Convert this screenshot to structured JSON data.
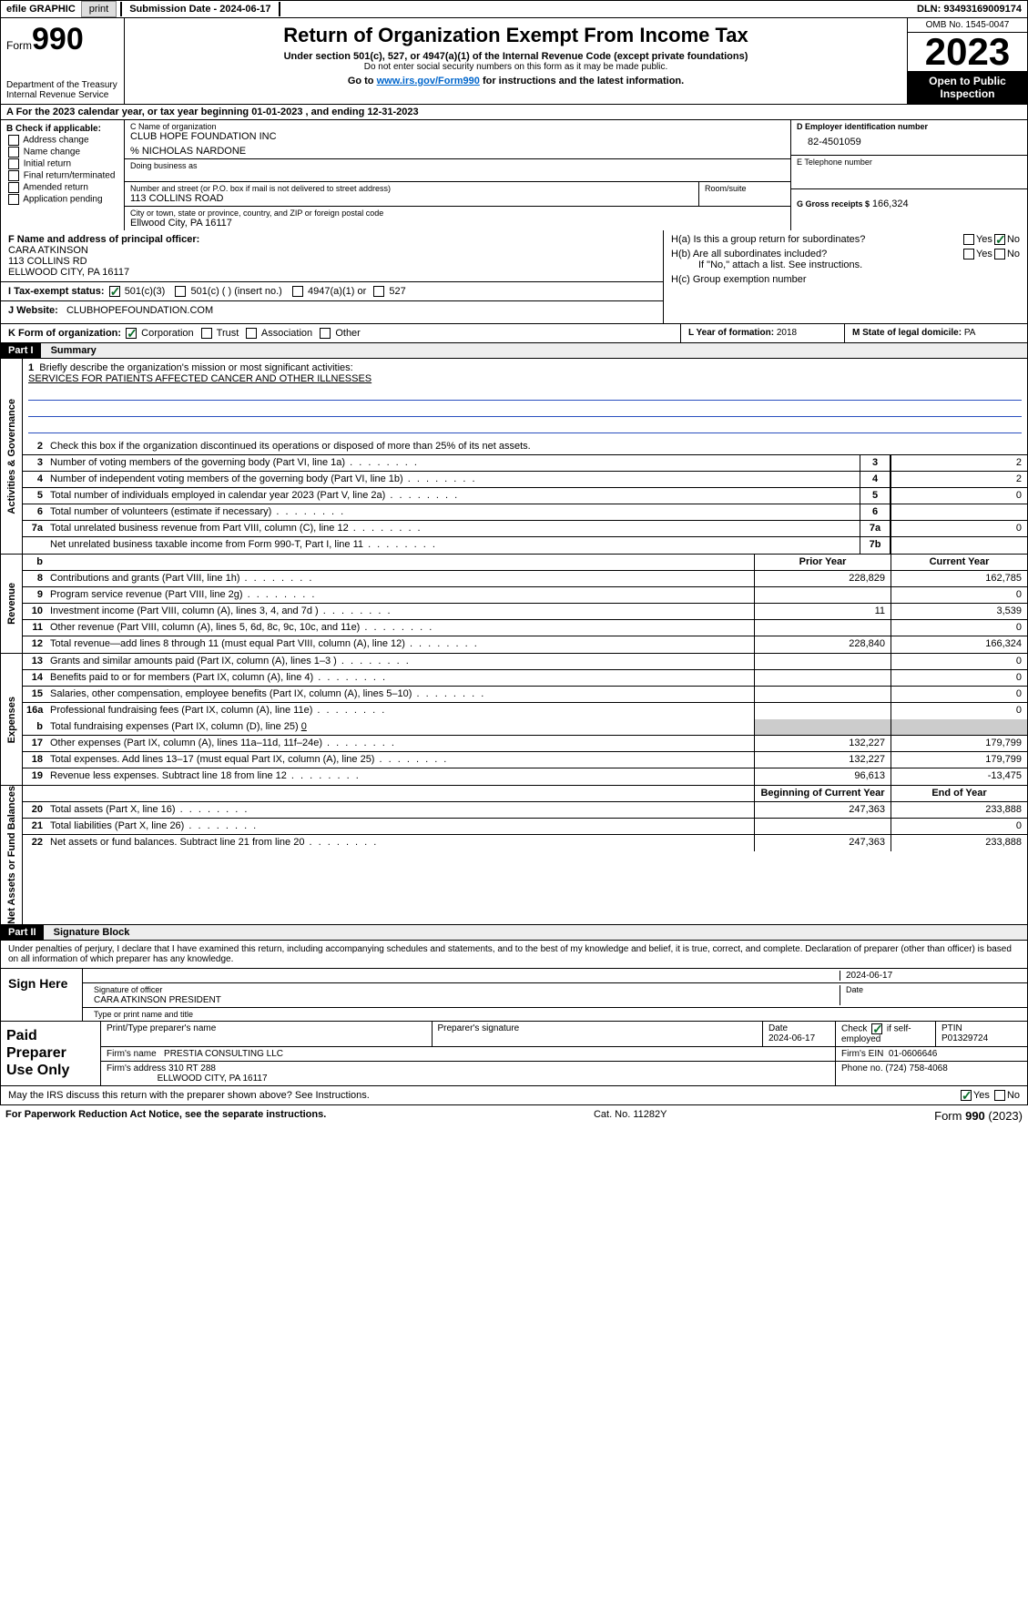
{
  "topbar": {
    "efile": "efile GRAPHIC",
    "print": "print",
    "submission": "Submission Date - 2024-06-17",
    "dln": "DLN: 93493169009174"
  },
  "header": {
    "form_word": "Form",
    "form_num": "990",
    "dept": "Department of the Treasury Internal Revenue Service",
    "title": "Return of Organization Exempt From Income Tax",
    "sub1": "Under section 501(c), 527, or 4947(a)(1) of the Internal Revenue Code (except private foundations)",
    "sub2": "Do not enter social security numbers on this form as it may be made public.",
    "goto_pre": "Go to ",
    "goto_link": "www.irs.gov/Form990",
    "goto_post": " for instructions and the latest information.",
    "omb": "OMB No. 1545-0047",
    "year": "2023",
    "open": "Open to Public Inspection"
  },
  "period": "A For the 2023 calendar year, or tax year beginning 01-01-2023   , and ending 12-31-2023",
  "colB": {
    "title": "B Check if applicable:",
    "opts": [
      "Address change",
      "Name change",
      "Initial return",
      "Final return/terminated",
      "Amended return",
      "Application pending"
    ]
  },
  "C": {
    "lbl_name": "C Name of organization",
    "org": "CLUB HOPE FOUNDATION INC",
    "care": "% NICHOLAS NARDONE",
    "dba_lbl": "Doing business as",
    "addr_lbl": "Number and street (or P.O. box if mail is not delivered to street address)",
    "room_lbl": "Room/suite",
    "addr": "113 COLLINS ROAD",
    "city_lbl": "City or town, state or province, country, and ZIP or foreign postal code",
    "city": "Ellwood City, PA  16117"
  },
  "D": {
    "lbl": "D Employer identification number",
    "val": "82-4501059"
  },
  "E": {
    "lbl": "E Telephone number",
    "val": ""
  },
  "G": {
    "lbl": "G Gross receipts $",
    "val": "166,324"
  },
  "F": {
    "lbl": "F  Name and address of principal officer:",
    "name": "CARA ATKINSON",
    "addr1": "113 COLLINS RD",
    "addr2": "ELLWOOD CITY, PA  16117"
  },
  "I": {
    "lbl": "I   Tax-exempt status:",
    "o1": "501(c)(3)",
    "o2": "501(c) (  ) (insert no.)",
    "o3": "4947(a)(1) or",
    "o4": "527"
  },
  "J": {
    "lbl": "J   Website:",
    "val": "CLUBHOPEFOUNDATION.COM"
  },
  "H": {
    "a": "H(a)  Is this a group return for subordinates?",
    "b": "H(b)  Are all subordinates included?",
    "note": "If \"No,\" attach a list. See instructions.",
    "c": "H(c)  Group exemption number",
    "yes": "Yes",
    "no": "No"
  },
  "K": {
    "lbl": "K Form of organization:",
    "o1": "Corporation",
    "o2": "Trust",
    "o3": "Association",
    "o4": "Other"
  },
  "L": {
    "lbl": "L Year of formation:",
    "val": "2018"
  },
  "M": {
    "lbl": "M State of legal domicile:",
    "val": "PA"
  },
  "partI": {
    "hdr": "Part I",
    "title": "Summary"
  },
  "mission": {
    "q": "Briefly describe the organization's mission or most significant activities:",
    "a": "SERVICES FOR PATIENTS AFFECTED CANCER AND OTHER ILLNESSES"
  },
  "line2": "Check this box      if the organization discontinued its operations or disposed of more than 25% of its net assets.",
  "sections": {
    "gov": "Activities & Governance",
    "rev": "Revenue",
    "exp": "Expenses",
    "net": "Net Assets or Fund Balances"
  },
  "govRows": [
    {
      "n": "3",
      "t": "Number of voting members of the governing body (Part VI, line 1a)",
      "c": "3",
      "v": "2"
    },
    {
      "n": "4",
      "t": "Number of independent voting members of the governing body (Part VI, line 1b)",
      "c": "4",
      "v": "2"
    },
    {
      "n": "5",
      "t": "Total number of individuals employed in calendar year 2023 (Part V, line 2a)",
      "c": "5",
      "v": "0"
    },
    {
      "n": "6",
      "t": "Total number of volunteers (estimate if necessary)",
      "c": "6",
      "v": ""
    },
    {
      "n": "7a",
      "t": "Total unrelated business revenue from Part VIII, column (C), line 12",
      "c": "7a",
      "v": "0"
    },
    {
      "n": "",
      "t": "Net unrelated business taxable income from Form 990-T, Part I, line 11",
      "c": "7b",
      "v": ""
    }
  ],
  "colHdr": {
    "b": "b",
    "prior": "Prior Year",
    "curr": "Current Year"
  },
  "revRows": [
    {
      "n": "8",
      "t": "Contributions and grants (Part VIII, line 1h)",
      "p": "228,829",
      "c": "162,785"
    },
    {
      "n": "9",
      "t": "Program service revenue (Part VIII, line 2g)",
      "p": "",
      "c": "0"
    },
    {
      "n": "10",
      "t": "Investment income (Part VIII, column (A), lines 3, 4, and 7d )",
      "p": "11",
      "c": "3,539"
    },
    {
      "n": "11",
      "t": "Other revenue (Part VIII, column (A), lines 5, 6d, 8c, 9c, 10c, and 11e)",
      "p": "",
      "c": "0"
    },
    {
      "n": "12",
      "t": "Total revenue—add lines 8 through 11 (must equal Part VIII, column (A), line 12)",
      "p": "228,840",
      "c": "166,324"
    }
  ],
  "expRows": [
    {
      "n": "13",
      "t": "Grants and similar amounts paid (Part IX, column (A), lines 1–3 )",
      "p": "",
      "c": "0"
    },
    {
      "n": "14",
      "t": "Benefits paid to or for members (Part IX, column (A), line 4)",
      "p": "",
      "c": "0"
    },
    {
      "n": "15",
      "t": "Salaries, other compensation, employee benefits (Part IX, column (A), lines 5–10)",
      "p": "",
      "c": "0"
    },
    {
      "n": "16a",
      "t": "Professional fundraising fees (Part IX, column (A), line 11e)",
      "p": "",
      "c": "0"
    }
  ],
  "exp16b": {
    "n": "b",
    "t": "Total fundraising expenses (Part IX, column (D), line 25)",
    "v": "0"
  },
  "expRows2": [
    {
      "n": "17",
      "t": "Other expenses (Part IX, column (A), lines 11a–11d, 11f–24e)",
      "p": "132,227",
      "c": "179,799"
    },
    {
      "n": "18",
      "t": "Total expenses. Add lines 13–17 (must equal Part IX, column (A), line 25)",
      "p": "132,227",
      "c": "179,799"
    },
    {
      "n": "19",
      "t": "Revenue less expenses. Subtract line 18 from line 12",
      "p": "96,613",
      "c": "-13,475"
    }
  ],
  "netHdr": {
    "p": "Beginning of Current Year",
    "c": "End of Year"
  },
  "netRows": [
    {
      "n": "20",
      "t": "Total assets (Part X, line 16)",
      "p": "247,363",
      "c": "233,888"
    },
    {
      "n": "21",
      "t": "Total liabilities (Part X, line 26)",
      "p": "",
      "c": "0"
    },
    {
      "n": "22",
      "t": "Net assets or fund balances. Subtract line 21 from line 20",
      "p": "247,363",
      "c": "233,888"
    }
  ],
  "partII": {
    "hdr": "Part II",
    "title": "Signature Block"
  },
  "sigdecl": "Under penalties of perjury, I declare that I have examined this return, including accompanying schedules and statements, and to the best of my knowledge and belief, it is true, correct, and complete. Declaration of preparer (other than officer) is based on all information of which preparer has any knowledge.",
  "sign": {
    "lbl": "Sign Here",
    "sigof": "Signature of officer",
    "date": "Date",
    "dateval": "2024-06-17",
    "name": "CARA ATKINSON PRESIDENT",
    "typelbl": "Type or print name and title"
  },
  "paid": {
    "lbl": "Paid Preparer Use Only",
    "h1": "Print/Type preparer's name",
    "h2": "Preparer's signature",
    "h3": "Date",
    "h3v": "2024-06-17",
    "h4": "Check         if self-employed",
    "h5": "PTIN",
    "ptin": "P01329724",
    "firm_lbl": "Firm's name",
    "firm": "PRESTIA CONSULTING LLC",
    "ein_lbl": "Firm's EIN",
    "ein": "01-0606646",
    "addr_lbl": "Firm's address",
    "addr1": "310 RT 288",
    "addr2": "ELLWOOD CITY, PA  16117",
    "phone_lbl": "Phone no.",
    "phone": "(724) 758-4068"
  },
  "discuss": "May the IRS discuss this return with the preparer shown above? See Instructions.",
  "footer": {
    "l": "For Paperwork Reduction Act Notice, see the separate instructions.",
    "m": "Cat. No. 11282Y",
    "r": "Form 990 (2023)"
  }
}
